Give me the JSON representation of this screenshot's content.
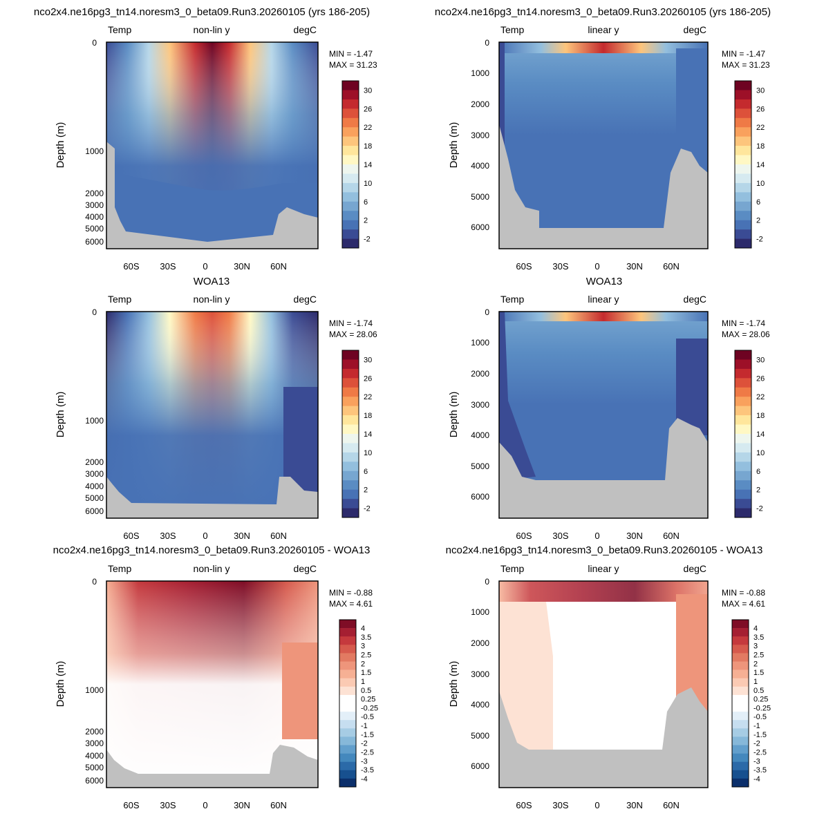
{
  "titles": {
    "top": "nco2x4.ne16pg3_tn14.noresm3_0_beta09.Run3.20260105 (yrs 186-205)",
    "middle": "WOA13",
    "bottom": "nco2x4.ne16pg3_tn14.noresm3_0_beta09.Run3.20260105 - WOA13"
  },
  "panel_labels": {
    "variable": "Temp",
    "units": "degC",
    "nonlin": "non-lin y",
    "linear": "linear y",
    "ylabel": "Depth (m)"
  },
  "minmax": [
    {
      "min": "MIN =  -1.47",
      "max": "MAX =  31.23"
    },
    {
      "min": "MIN =  -1.74",
      "max": "MAX =  28.06"
    },
    {
      "min": "MIN =  -0.88",
      "max": "MAX =   4.61"
    }
  ],
  "colors": {
    "temp_scale": [
      "#2c2a6b",
      "#3a4b94",
      "#4872b5",
      "#5a8cc3",
      "#77a6d0",
      "#93bfde",
      "#b5d6e8",
      "#d6eaf0",
      "#eef6ee",
      "#fff8c4",
      "#ffe69c",
      "#fdc57c",
      "#f9a15d",
      "#ef7a46",
      "#dd513a",
      "#c42a2e",
      "#9d1028",
      "#6e0322"
    ],
    "diff_scale": [
      "#0b2f6b",
      "#17508f",
      "#2b6aa8",
      "#4488bd",
      "#629fcc",
      "#86b8d9",
      "#a6cce4",
      "#c6def0",
      "#e3eff8",
      "#ffffff",
      "#ffffff",
      "#fde2d4",
      "#fbcab3",
      "#f6b094",
      "#ee957b",
      "#e27a62",
      "#d65a4d",
      "#c5393d",
      "#a51f32",
      "#7f0d26"
    ],
    "land": "#c0c0c0"
  },
  "chart_data": [
    {
      "type": "heatmap",
      "row": "model",
      "title": "nco2x4.ne16pg3_tn14.noresm3_0_beta09.Run3.20260105 (yrs 186-205)",
      "variable": "Temp",
      "units": "degC",
      "ylabel": "Depth (m)",
      "y_axis": "non-lin y",
      "ylim": [
        6000,
        0
      ],
      "yticks": [
        0,
        1000,
        2000,
        3000,
        4000,
        5000,
        6000
      ],
      "xticks": [
        "60S",
        "30S",
        "0",
        "30N",
        "60N"
      ],
      "colorbar": [
        "30",
        "26",
        "22",
        "18",
        "14",
        "10",
        "6",
        "2",
        "-2"
      ],
      "min": -1.47,
      "max": 31.23
    },
    {
      "type": "heatmap",
      "row": "model",
      "title": "nco2x4.ne16pg3_tn14.noresm3_0_beta09.Run3.20260105 (yrs 186-205)",
      "variable": "Temp",
      "units": "degC",
      "ylabel": "Depth (m)",
      "y_axis": "linear y",
      "ylim": [
        6500,
        0
      ],
      "yticks": [
        0,
        1000,
        2000,
        3000,
        4000,
        5000,
        6000
      ],
      "xticks": [
        "60S",
        "30S",
        "0",
        "30N",
        "60N"
      ],
      "colorbar": [
        "30",
        "26",
        "22",
        "18",
        "14",
        "10",
        "6",
        "2",
        "-2"
      ],
      "min": -1.47,
      "max": 31.23
    },
    {
      "type": "heatmap",
      "row": "obs",
      "title": "WOA13",
      "variable": "Temp",
      "units": "degC",
      "ylabel": "Depth (m)",
      "y_axis": "non-lin y",
      "ylim": [
        6000,
        0
      ],
      "yticks": [
        0,
        1000,
        2000,
        3000,
        4000,
        5000,
        6000
      ],
      "xticks": [
        "60S",
        "30S",
        "0",
        "30N",
        "60N"
      ],
      "colorbar": [
        "30",
        "26",
        "22",
        "18",
        "14",
        "10",
        "6",
        "2",
        "-2"
      ],
      "min": -1.74,
      "max": 28.06
    },
    {
      "type": "heatmap",
      "row": "obs",
      "title": "WOA13",
      "variable": "Temp",
      "units": "degC",
      "ylabel": "Depth (m)",
      "y_axis": "linear y",
      "ylim": [
        6500,
        0
      ],
      "yticks": [
        0,
        1000,
        2000,
        3000,
        4000,
        5000,
        6000
      ],
      "xticks": [
        "60S",
        "30S",
        "0",
        "30N",
        "60N"
      ],
      "colorbar": [
        "30",
        "26",
        "22",
        "18",
        "14",
        "10",
        "6",
        "2",
        "-2"
      ],
      "min": -1.74,
      "max": 28.06
    },
    {
      "type": "heatmap",
      "row": "diff",
      "title": "nco2x4.ne16pg3_tn14.noresm3_0_beta09.Run3.20260105 - WOA13",
      "variable": "Temp",
      "units": "degC",
      "ylabel": "Depth (m)",
      "y_axis": "non-lin y",
      "ylim": [
        6000,
        0
      ],
      "yticks": [
        0,
        1000,
        2000,
        3000,
        4000,
        5000,
        6000
      ],
      "xticks": [
        "60S",
        "30S",
        "0",
        "30N",
        "60N"
      ],
      "colorbar": [
        "4",
        "3.5",
        "3",
        "2.5",
        "2",
        "1.5",
        "1",
        "0.5",
        "0.25",
        "-0.25",
        "-0.5",
        "-1",
        "-1.5",
        "-2",
        "-2.5",
        "-3",
        "-3.5",
        "-4"
      ],
      "min": -0.88,
      "max": 4.61
    },
    {
      "type": "heatmap",
      "row": "diff",
      "title": "nco2x4.ne16pg3_tn14.noresm3_0_beta09.Run3.20260105 - WOA13",
      "variable": "Temp",
      "units": "degC",
      "ylabel": "Depth (m)",
      "y_axis": "linear y",
      "ylim": [
        6500,
        0
      ],
      "yticks": [
        0,
        1000,
        2000,
        3000,
        4000,
        5000,
        6000
      ],
      "xticks": [
        "60S",
        "30S",
        "0",
        "30N",
        "60N"
      ],
      "colorbar": [
        "4",
        "3.5",
        "3",
        "2.5",
        "2",
        "1.5",
        "1",
        "0.5",
        "0.25",
        "-0.25",
        "-0.5",
        "-1",
        "-1.5",
        "-2",
        "-2.5",
        "-3",
        "-3.5",
        "-4"
      ],
      "min": -0.88,
      "max": 4.61
    }
  ]
}
